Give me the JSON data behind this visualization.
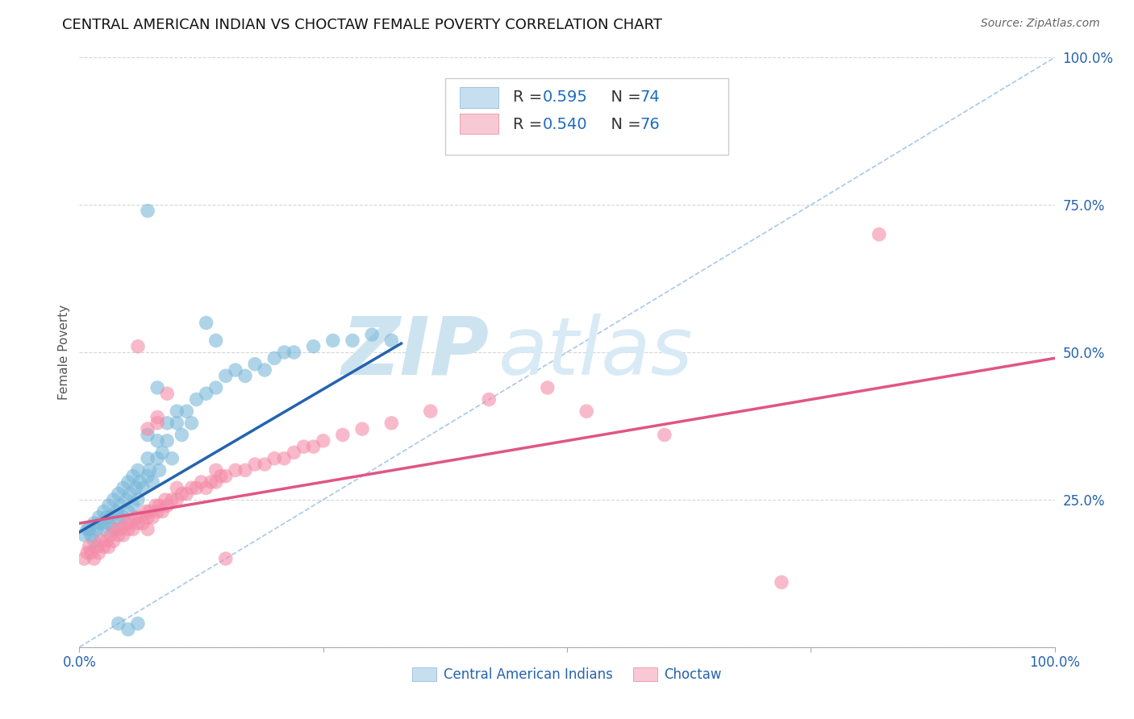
{
  "title": "CENTRAL AMERICAN INDIAN VS CHOCTAW FEMALE POVERTY CORRELATION CHART",
  "source": "Source: ZipAtlas.com",
  "ylabel": "Female Poverty",
  "xlim": [
    0,
    1
  ],
  "ylim": [
    0,
    1
  ],
  "background_color": "#ffffff",
  "blue_color": "#7ab8d9",
  "pink_color": "#f48ca8",
  "blue_line_color": "#2563ae",
  "pink_line_color": "#e05585",
  "diagonal_color": "#a8c8e8",
  "legend_text_color_rn": "#1f6bbf",
  "legend_text_color_label": "#333333",
  "blue_fill": "#c5dff0",
  "pink_fill": "#f9c8d5",
  "tick_color": "#2563ae",
  "watermark_zip_color": "#cde4f0",
  "watermark_atlas_color": "#d8eaf5",
  "blue_line_x": [
    0.0,
    0.33
  ],
  "blue_line_y_start": 0.195,
  "blue_line_y_end": 0.515,
  "pink_line_x": [
    0.0,
    1.0
  ],
  "pink_line_y_start": 0.21,
  "pink_line_y_end": 0.49,
  "blue_scatter_x": [
    0.005,
    0.008,
    0.01,
    0.012,
    0.015,
    0.015,
    0.018,
    0.02,
    0.022,
    0.025,
    0.025,
    0.028,
    0.03,
    0.03,
    0.032,
    0.035,
    0.035,
    0.038,
    0.04,
    0.04,
    0.042,
    0.045,
    0.045,
    0.048,
    0.05,
    0.05,
    0.052,
    0.055,
    0.055,
    0.058,
    0.06,
    0.06,
    0.062,
    0.065,
    0.07,
    0.07,
    0.072,
    0.075,
    0.08,
    0.08,
    0.082,
    0.085,
    0.09,
    0.09,
    0.095,
    0.1,
    0.1,
    0.105,
    0.11,
    0.115,
    0.12,
    0.13,
    0.14,
    0.15,
    0.16,
    0.17,
    0.18,
    0.19,
    0.2,
    0.21,
    0.22,
    0.24,
    0.26,
    0.28,
    0.3,
    0.32,
    0.04,
    0.05,
    0.06,
    0.13,
    0.14,
    0.07,
    0.07,
    0.08
  ],
  "blue_scatter_y": [
    0.19,
    0.2,
    0.2,
    0.19,
    0.18,
    0.21,
    0.2,
    0.22,
    0.21,
    0.2,
    0.23,
    0.22,
    0.21,
    0.24,
    0.22,
    0.2,
    0.25,
    0.23,
    0.22,
    0.26,
    0.24,
    0.22,
    0.27,
    0.25,
    0.23,
    0.28,
    0.26,
    0.24,
    0.29,
    0.27,
    0.25,
    0.3,
    0.28,
    0.27,
    0.29,
    0.32,
    0.3,
    0.28,
    0.32,
    0.35,
    0.3,
    0.33,
    0.35,
    0.38,
    0.32,
    0.38,
    0.4,
    0.36,
    0.4,
    0.38,
    0.42,
    0.43,
    0.44,
    0.46,
    0.47,
    0.46,
    0.48,
    0.47,
    0.49,
    0.5,
    0.5,
    0.51,
    0.52,
    0.52,
    0.53,
    0.52,
    0.04,
    0.03,
    0.04,
    0.55,
    0.52,
    0.74,
    0.36,
    0.44
  ],
  "pink_scatter_x": [
    0.005,
    0.008,
    0.01,
    0.012,
    0.015,
    0.018,
    0.02,
    0.022,
    0.025,
    0.028,
    0.03,
    0.032,
    0.035,
    0.038,
    0.04,
    0.042,
    0.045,
    0.048,
    0.05,
    0.052,
    0.055,
    0.058,
    0.06,
    0.062,
    0.065,
    0.068,
    0.07,
    0.072,
    0.075,
    0.078,
    0.08,
    0.082,
    0.085,
    0.088,
    0.09,
    0.095,
    0.1,
    0.105,
    0.11,
    0.115,
    0.12,
    0.125,
    0.13,
    0.135,
    0.14,
    0.145,
    0.15,
    0.16,
    0.17,
    0.18,
    0.19,
    0.2,
    0.21,
    0.22,
    0.23,
    0.24,
    0.25,
    0.27,
    0.29,
    0.32,
    0.36,
    0.42,
    0.48,
    0.52,
    0.6,
    0.72,
    0.82,
    0.07,
    0.08,
    0.09,
    0.1,
    0.14,
    0.15,
    0.06,
    0.07,
    0.08
  ],
  "pink_scatter_y": [
    0.15,
    0.16,
    0.17,
    0.16,
    0.15,
    0.17,
    0.16,
    0.18,
    0.17,
    0.18,
    0.17,
    0.19,
    0.18,
    0.2,
    0.19,
    0.2,
    0.19,
    0.21,
    0.2,
    0.21,
    0.2,
    0.22,
    0.21,
    0.22,
    0.21,
    0.23,
    0.22,
    0.23,
    0.22,
    0.24,
    0.23,
    0.24,
    0.23,
    0.25,
    0.24,
    0.25,
    0.25,
    0.26,
    0.26,
    0.27,
    0.27,
    0.28,
    0.27,
    0.28,
    0.28,
    0.29,
    0.29,
    0.3,
    0.3,
    0.31,
    0.31,
    0.32,
    0.32,
    0.33,
    0.34,
    0.34,
    0.35,
    0.36,
    0.37,
    0.38,
    0.4,
    0.42,
    0.44,
    0.4,
    0.36,
    0.11,
    0.7,
    0.37,
    0.39,
    0.43,
    0.27,
    0.3,
    0.15,
    0.51,
    0.2,
    0.38
  ]
}
